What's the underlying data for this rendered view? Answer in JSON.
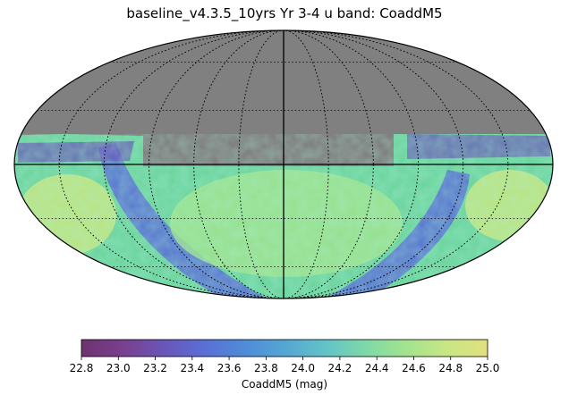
{
  "chart_data": {
    "type": "heatmap",
    "projection": "mollweide",
    "title": "baseline_v4.3.5_10yrs Yr 3-4 u band: CoaddM5",
    "colorbar": {
      "label": "CoaddM5 (mag)",
      "range": [
        22.8,
        25.0
      ],
      "ticks": [
        "22.8",
        "23.0",
        "23.2",
        "23.4",
        "23.6",
        "23.8",
        "24.0",
        "24.2",
        "24.4",
        "24.6",
        "24.8",
        "25.0"
      ],
      "colormap": "viridis-like",
      "colors": [
        "#6e3270",
        "#7a3f8e",
        "#6a55b8",
        "#5a6ed6",
        "#4f8bd9",
        "#54a6d3",
        "#62c3c8",
        "#7ed9a8",
        "#a3e38f",
        "#c8e683",
        "#e3e07e"
      ]
    },
    "unobserved_color": "#808080",
    "grid": true,
    "map_regions": [
      {
        "region": "north of dec ~ +15 deg",
        "state": "unobserved",
        "value": null
      },
      {
        "region": "equatorial band / galactic plane",
        "state": "observed",
        "value": 23.6
      },
      {
        "region": "southern extragalactic sky",
        "state": "observed",
        "value": 24.1
      },
      {
        "region": "south polar cap",
        "state": "observed",
        "value": 24.3
      }
    ]
  }
}
